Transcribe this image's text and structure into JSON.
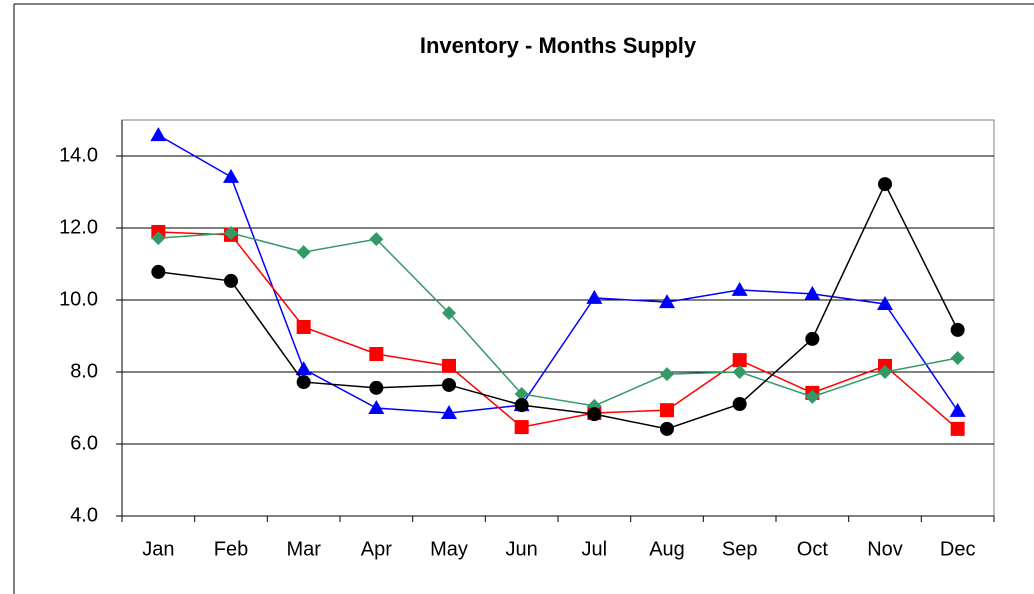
{
  "chart_data": {
    "type": "line",
    "title": "Inventory - Months Supply",
    "categories": [
      "Jan",
      "Feb",
      "Mar",
      "Apr",
      "May",
      "Jun",
      "Jul",
      "Aug",
      "Sep",
      "Oct",
      "Nov",
      "Dec"
    ],
    "series": [
      {
        "color": "#0000ff",
        "marker": "triangle",
        "values": [
          14.58,
          13.42,
          8.08,
          7.0,
          6.86,
          7.08,
          10.06,
          9.94,
          10.28,
          10.17,
          9.89,
          6.92
        ]
      },
      {
        "color": "#ff0000",
        "marker": "square",
        "values": [
          11.89,
          11.81,
          9.25,
          8.5,
          8.17,
          6.47,
          6.86,
          6.94,
          8.33,
          7.42,
          8.17,
          6.42
        ]
      },
      {
        "color": "#339966",
        "marker": "diamond",
        "values": [
          11.72,
          11.86,
          11.33,
          11.69,
          9.64,
          7.39,
          7.06,
          7.94,
          8.0,
          7.31,
          8.0,
          8.39
        ]
      },
      {
        "color": "#000000",
        "marker": "circle",
        "values": [
          10.78,
          10.53,
          7.72,
          7.56,
          7.64,
          7.08,
          6.83,
          6.42,
          7.11,
          8.92,
          13.22,
          9.17
        ]
      }
    ],
    "ylim": [
      4,
      15
    ],
    "yticks": [
      {
        "value": 4,
        "label": "4.0"
      },
      {
        "value": 6,
        "label": "6.0"
      },
      {
        "value": 8,
        "label": "8.0"
      },
      {
        "value": 10,
        "label": "10.0"
      },
      {
        "value": 12,
        "label": "12.0"
      },
      {
        "value": 14,
        "label": "14.0"
      }
    ],
    "grid": true
  }
}
